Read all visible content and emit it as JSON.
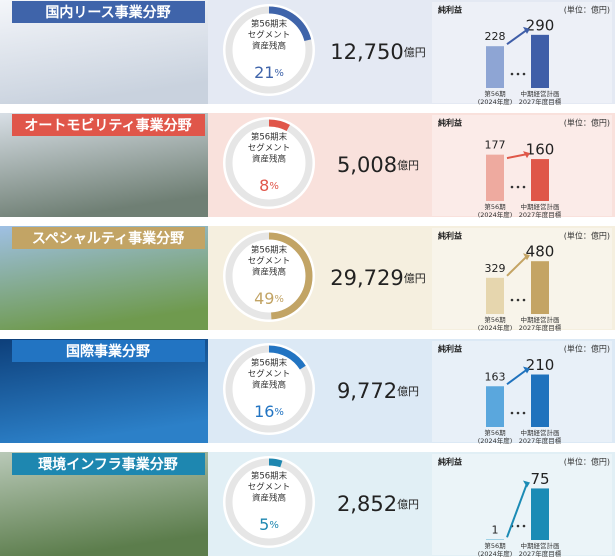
{
  "segments": [
    {
      "title": "国内リース事業分野",
      "donut_lines": [
        "第56期末",
        "セグメント",
        "資産残高"
      ],
      "share": 21,
      "share_unit": "%",
      "amount": "12,750",
      "amount_unit": "億円",
      "theme": "#3f64aa",
      "bg": "#e4e9f3",
      "photo": [
        "#f4f6fa",
        "#c9d2de"
      ],
      "chart": {
        "type": "bar",
        "title": "純利益",
        "unit_label": "(単位：億円)",
        "categories": [
          [
            "第56期",
            "(2024年度)"
          ],
          [
            "中期経営計画",
            "2027年度目標"
          ]
        ],
        "values": [
          228,
          290
        ],
        "colors": [
          "#8ea5d4",
          "#3f5ea8"
        ],
        "ylim": [
          0,
          300
        ]
      }
    },
    {
      "title": "オートモビリティ事業分野",
      "donut_lines": [
        "第56期末",
        "セグメント",
        "資産残高"
      ],
      "share": 8,
      "share_unit": "%",
      "amount": "5,008",
      "amount_unit": "億円",
      "theme": "#e0564a",
      "bg": "#f9e1dc",
      "photo": [
        "#d8dfe6",
        "#6f7f74"
      ],
      "chart": {
        "type": "bar",
        "title": "純利益",
        "unit_label": "(単位：億円)",
        "categories": [
          [
            "第56期",
            "(2024年度)"
          ],
          [
            "中期経営計画",
            "2027年度目標"
          ]
        ],
        "values": [
          177,
          160
        ],
        "colors": [
          "#eeaa9f",
          "#df5748"
        ],
        "ylim": [
          0,
          210
        ]
      }
    },
    {
      "title": "スペシャルティ事業分野",
      "donut_lines": [
        "第56期末",
        "セグメント",
        "資産残高"
      ],
      "share": 49,
      "share_unit": "%",
      "amount": "29,729",
      "amount_unit": "億円",
      "theme": "#c2a465",
      "bg": "#f5efdf",
      "photo": [
        "#9fc0e4",
        "#6f9a4e"
      ],
      "chart": {
        "type": "bar",
        "title": "純利益",
        "unit_label": "(単位：億円)",
        "categories": [
          [
            "第56期",
            "(2024年度)"
          ],
          [
            "中期経営計画",
            "2027年度目標"
          ]
        ],
        "values": [
          329,
          480
        ],
        "colors": [
          "#e6d6ae",
          "#c4a464"
        ],
        "ylim": [
          0,
          500
        ]
      }
    },
    {
      "title": "国際事業分野",
      "donut_lines": [
        "第56期末",
        "セグメント",
        "資産残高"
      ],
      "share": 16,
      "share_unit": "%",
      "amount": "9,772",
      "amount_unit": "億円",
      "theme": "#2274c2",
      "bg": "#dce9f5",
      "photo": [
        "#0d3f7a",
        "#2c80c8"
      ],
      "chart": {
        "type": "bar",
        "title": "純利益",
        "unit_label": "(単位：億円)",
        "categories": [
          [
            "第56期",
            "(2024年度)"
          ],
          [
            "中期経営計画",
            "2027年度目標"
          ]
        ],
        "values": [
          163,
          210
        ],
        "colors": [
          "#5aa7dd",
          "#1f72bd"
        ],
        "ylim": [
          0,
          220
        ]
      }
    },
    {
      "title": "環境インフラ事業分野",
      "donut_lines": [
        "第56期末",
        "セグメント",
        "資産残高"
      ],
      "share": 5,
      "share_unit": "%",
      "amount": "2,852",
      "amount_unit": "億円",
      "theme": "#1e87b0",
      "bg": "#e1eff5",
      "photo": [
        "#b9c9b8",
        "#5c7d4c"
      ],
      "chart": {
        "type": "bar",
        "title": "純利益",
        "unit_label": "(単位：億円)",
        "categories": [
          [
            "第56期",
            "(2024年度)"
          ],
          [
            "中期経営計画",
            "2027年度目標"
          ]
        ],
        "values": [
          1,
          75
        ],
        "colors": [
          "#7cc1dc",
          "#1b8bb5"
        ],
        "ylim": [
          0,
          80
        ]
      }
    }
  ]
}
